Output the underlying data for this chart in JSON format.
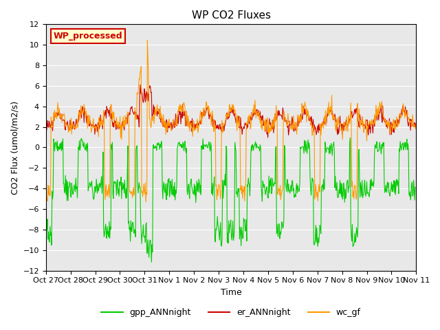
{
  "title": "WP CO2 Fluxes",
  "xlabel": "Time",
  "ylabel": "CO2 Flux (umol/m2/s)",
  "ylim": [
    -12,
    12
  ],
  "yticks": [
    -12,
    -10,
    -8,
    -6,
    -4,
    -2,
    0,
    2,
    4,
    6,
    8,
    10,
    12
  ],
  "annotation_text": "WP_processed",
  "annotation_bg": "#ffffcc",
  "annotation_text_color": "#cc0000",
  "annotation_border_color": "#cc0000",
  "colors": {
    "gpp_ANNnight": "#00cc00",
    "er_ANNnight": "#cc0000",
    "wc_gf": "#ff9900"
  },
  "legend_labels": [
    "gpp_ANNnight",
    "er_ANNnight",
    "wc_gf"
  ],
  "xtick_labels": [
    "Oct 27",
    "Oct 28",
    "Oct 29",
    "Oct 30",
    "Oct 31",
    "Nov 1",
    "Nov 2",
    "Nov 3",
    "Nov 4",
    "Nov 5",
    "Nov 6",
    "Nov 7",
    "Nov 8",
    "Nov 9",
    "Nov 10",
    "Nov 11"
  ],
  "n_days": 15,
  "pts_per_day": 48,
  "background_color": "#e8e8e8",
  "line_width": 0.8
}
